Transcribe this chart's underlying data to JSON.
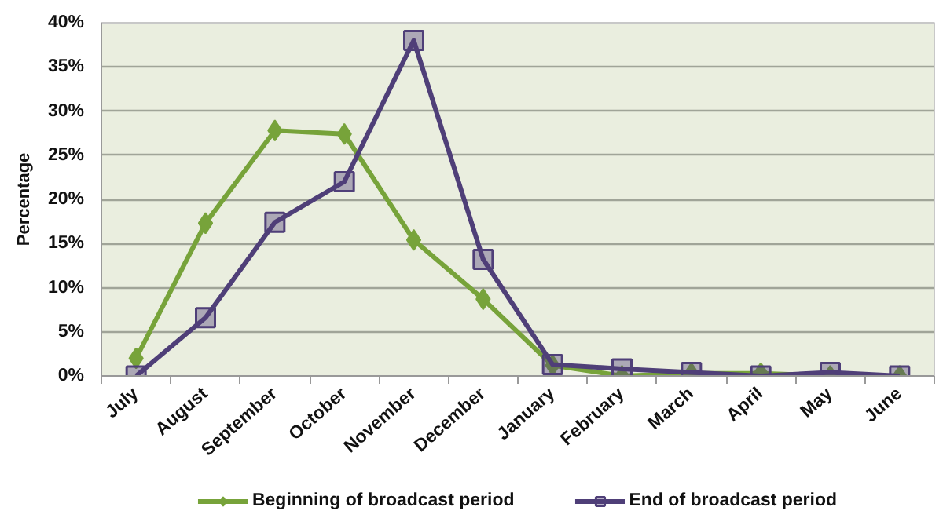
{
  "chart_data": {
    "type": "line",
    "ylabel": "Percentage",
    "categories": [
      "July",
      "August",
      "September",
      "October",
      "November",
      "December",
      "January",
      "February",
      "March",
      "April",
      "May",
      "June"
    ],
    "series": [
      {
        "name": "Beginning of broadcast period",
        "color": "#77a33a",
        "marker": "diamond",
        "values": [
          2,
          17.3,
          27.8,
          27.4,
          15.4,
          8.7,
          1.2,
          0,
          0.3,
          0.3,
          0,
          0
        ]
      },
      {
        "name": "End of broadcast period",
        "color": "#4f3f78",
        "marker": "square",
        "values": [
          0,
          6.6,
          17.4,
          22,
          38,
          13.2,
          1.3,
          0.8,
          0.4,
          0,
          0.4,
          0
        ]
      }
    ],
    "ylim": [
      0,
      40
    ],
    "yticks": [
      {
        "value": 0,
        "label": "0%"
      },
      {
        "value": 5,
        "label": "5%"
      },
      {
        "value": 10,
        "label": "10%"
      },
      {
        "value": 15,
        "label": "15%"
      },
      {
        "value": 20,
        "label": "20%"
      },
      {
        "value": 25,
        "label": "25%"
      },
      {
        "value": 30,
        "label": "30%"
      },
      {
        "value": 35,
        "label": "35%"
      },
      {
        "value": 40,
        "label": "40%"
      }
    ],
    "grid": "y",
    "legend": "bottom",
    "line_style": "solid"
  }
}
